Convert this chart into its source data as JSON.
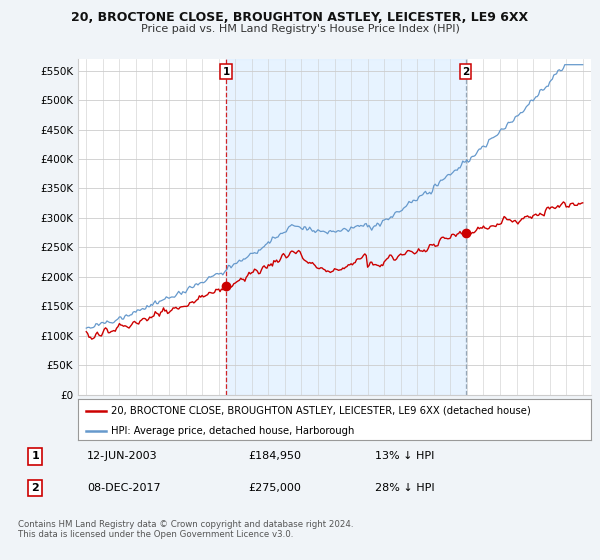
{
  "title": "20, BROCTONE CLOSE, BROUGHTON ASTLEY, LEICESTER, LE9 6XX",
  "subtitle": "Price paid vs. HM Land Registry's House Price Index (HPI)",
  "red_label": "20, BROCTONE CLOSE, BROUGHTON ASTLEY, LEICESTER, LE9 6XX (detached house)",
  "blue_label": "HPI: Average price, detached house, Harborough",
  "annotation1_box": "1",
  "annotation1_date": "12-JUN-2003",
  "annotation1_price": "£184,950",
  "annotation1_hpi": "13% ↓ HPI",
  "annotation2_box": "2",
  "annotation2_date": "08-DEC-2017",
  "annotation2_price": "£275,000",
  "annotation2_hpi": "28% ↓ HPI",
  "footer": "Contains HM Land Registry data © Crown copyright and database right 2024.\nThis data is licensed under the Open Government Licence v3.0.",
  "red_color": "#cc0000",
  "blue_color": "#6699cc",
  "shade_color": "#ddeeff",
  "vline1_color": "#cc0000",
  "vline2_color": "#8899aa",
  "ylim_min": 0,
  "ylim_max": 570000,
  "yticks": [
    0,
    50000,
    100000,
    150000,
    200000,
    250000,
    300000,
    350000,
    400000,
    450000,
    500000,
    550000
  ],
  "ytick_labels": [
    "£0",
    "£50K",
    "£100K",
    "£150K",
    "£200K",
    "£250K",
    "£300K",
    "£350K",
    "£400K",
    "£450K",
    "£500K",
    "£550K"
  ],
  "xlim_min": 1994.5,
  "xlim_max": 2025.5,
  "sale1_year": 2003.45,
  "sale1_price": 184950,
  "sale2_year": 2017.92,
  "sale2_price": 275000,
  "background_color": "#f0f4f8",
  "plot_bg_color": "#ffffff"
}
